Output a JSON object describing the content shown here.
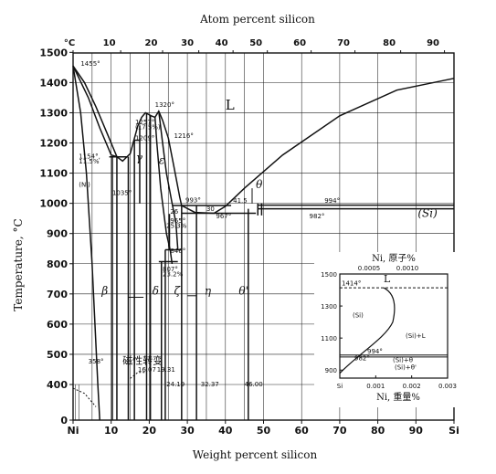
{
  "chart_data": {
    "type": "line",
    "title": "",
    "xlabel_top": "Atom percent silicon",
    "xlabel": "Weight percent silicon",
    "ylabel": "Temperature, °C",
    "xlim": [
      0,
      100
    ],
    "ylim": [
      0,
      1500
    ],
    "x_ticks": [
      "Ni",
      "10",
      "20",
      "30",
      "40",
      "50",
      "60",
      "70",
      "80",
      "90",
      "Si"
    ],
    "x_tick_values": [
      0,
      10,
      20,
      30,
      40,
      50,
      60,
      70,
      80,
      90,
      100
    ],
    "top_ticks": [
      "°C",
      "10",
      "20",
      "30",
      "40",
      "50",
      "60",
      "70",
      "80",
      "90"
    ],
    "top_tick_values": [
      0,
      10,
      20,
      30,
      40,
      50,
      60,
      70,
      80,
      90
    ],
    "y_ticks": [
      "0",
      "400",
      "500",
      "600",
      "700",
      "800",
      "900",
      "1000",
      "1100",
      "1200",
      "1300",
      "1400",
      "1500"
    ],
    "y_tick_values": [
      0,
      400,
      500,
      600,
      700,
      800,
      900,
      1000,
      1100,
      1200,
      1300,
      1400,
      1500
    ],
    "grid": true,
    "series": [
      {
        "values": [
          [
            0,
            1455
          ],
          [
            3,
            1400
          ],
          [
            6,
            1320
          ],
          [
            9,
            1230
          ],
          [
            11.5,
            1154
          ],
          [
            13,
            1140
          ],
          [
            15,
            1165
          ],
          [
            17,
            1257
          ],
          [
            18,
            1285
          ],
          [
            19,
            1300
          ],
          [
            20.5,
            1290
          ],
          [
            21.5,
            1285
          ],
          [
            22.5,
            1305
          ],
          [
            23.5,
            1275
          ],
          [
            25,
            1216
          ],
          [
            26.5,
            1120
          ],
          [
            28,
            1020
          ],
          [
            28.5,
            993
          ],
          [
            32,
            970
          ],
          [
            37,
            967
          ],
          [
            40,
            990
          ],
          [
            45,
            1050
          ],
          [
            55,
            1160
          ],
          [
            70,
            1290
          ],
          [
            85,
            1375
          ],
          [
            100,
            1414
          ]
        ]
      },
      {
        "values": [
          [
            0,
            1455
          ],
          [
            4,
            1350
          ],
          [
            7,
            1250
          ],
          [
            10,
            1160
          ],
          [
            11.5,
            1154
          ]
        ]
      },
      {
        "values": [
          [
            0,
            1455
          ],
          [
            2,
            1300
          ],
          [
            3.5,
            1100
          ],
          [
            5,
            800
          ],
          [
            6.5,
            400
          ],
          [
            7,
            0
          ]
        ]
      },
      {
        "values": [
          [
            21.5,
            1285
          ],
          [
            22,
            1200
          ],
          [
            23,
            1050
          ],
          [
            24.5,
            900
          ],
          [
            25.5,
            846
          ],
          [
            26,
            800
          ]
        ]
      },
      {
        "values": [
          [
            22.5,
            1305
          ],
          [
            23.5,
            1200
          ],
          [
            24.5,
            1100
          ],
          [
            26,
            1000
          ],
          [
            27,
            935
          ],
          [
            27.5,
            846
          ]
        ]
      }
    ],
    "annotations": [
      {
        "text": "1455°",
        "x": 2,
        "y": 1455
      },
      {
        "text": "1257°",
        "x": 16.3,
        "y": 1262
      },
      {
        "text": "(17.5%)",
        "x": 16.3,
        "y": 1245
      },
      {
        "text": "1209°",
        "x": 16.3,
        "y": 1209
      },
      {
        "text": "1320°",
        "x": 21.5,
        "y": 1320
      },
      {
        "text": "1216°",
        "x": 26.5,
        "y": 1216
      },
      {
        "text": "1154°,",
        "x": 1.5,
        "y": 1148
      },
      {
        "text": "11.5%",
        "x": 1.5,
        "y": 1132
      },
      {
        "text": "(Ni)",
        "x": 1.5,
        "y": 1055
      },
      {
        "text": "1035°",
        "x": 10.3,
        "y": 1027
      },
      {
        "text": "993°",
        "x": 29.5,
        "y": 1003
      },
      {
        "text": "26",
        "x": 25.5,
        "y": 966
      },
      {
        "text": "30",
        "x": 35,
        "y": 975
      },
      {
        "text": "41.5",
        "x": 42,
        "y": 1002
      },
      {
        "text": "967°",
        "x": 37.5,
        "y": 950
      },
      {
        "text": "994°",
        "x": 66,
        "y": 1002
      },
      {
        "text": "982°",
        "x": 62,
        "y": 950
      },
      {
        "text": "965°",
        "x": 25.5,
        "y": 935
      },
      {
        "text": "25.3%",
        "x": 24.5,
        "y": 918
      },
      {
        "text": "846°",
        "x": 25.5,
        "y": 836
      },
      {
        "text": "807°",
        "x": 23.5,
        "y": 775
      },
      {
        "text": "23.2%",
        "x": 23.5,
        "y": 758
      },
      {
        "text": "358°",
        "x": 4,
        "y": 470
      },
      {
        "text": "16.07",
        "x": 17,
        "y": 442
      },
      {
        "text": "19.31",
        "x": 22,
        "y": 442
      },
      {
        "text": "24.19",
        "x": 24.5,
        "y": 377
      },
      {
        "text": "32.37",
        "x": 33.5,
        "y": 377
      },
      {
        "text": "46.00",
        "x": 45,
        "y": 377
      },
      {
        "text": "磁性转变",
        "x": 13,
        "y": 468
      }
    ],
    "phase_labels": [
      {
        "text": "L",
        "x": 40,
        "y": 1310
      },
      {
        "text": "γ",
        "x": 16.5,
        "y": 1140
      },
      {
        "text": "ε",
        "x": 22.5,
        "y": 1130
      },
      {
        "text": "β",
        "x": 7.5,
        "y": 698
      },
      {
        "text": "δ",
        "x": 20.8,
        "y": 698
      },
      {
        "text": "ζ",
        "x": 26.5,
        "y": 698
      },
      {
        "text": "η",
        "x": 34.5,
        "y": 698
      },
      {
        "text": "θ'",
        "x": 43.5,
        "y": 698
      },
      {
        "text": "θ",
        "x": 48,
        "y": 1050
      },
      {
        "text": "(Si)",
        "x": 90.5,
        "y": 955
      }
    ],
    "inset": {
      "title": "Ni, 原子%",
      "top_ticks": [
        "0.0005",
        "0.0010"
      ],
      "xlabel": "Ni, 重量%",
      "x_ticks": [
        "Si",
        "0.001",
        "0.002",
        "0.003"
      ],
      "x_tick_values": [
        0,
        0.001,
        0.002,
        0.003
      ],
      "y_ticks": [
        "900",
        "1100",
        "1300",
        "1500"
      ],
      "y_tick_values": [
        900,
        1100,
        1300,
        1500
      ],
      "ylim": [
        850,
        1500
      ],
      "xlim": [
        0,
        0.003
      ],
      "labels": [
        "1414°",
        "L",
        "(Si)",
        "(Si)+L",
        "994°",
        "(Si)+θ",
        "982°",
        "(Si)+θ'"
      ]
    }
  }
}
